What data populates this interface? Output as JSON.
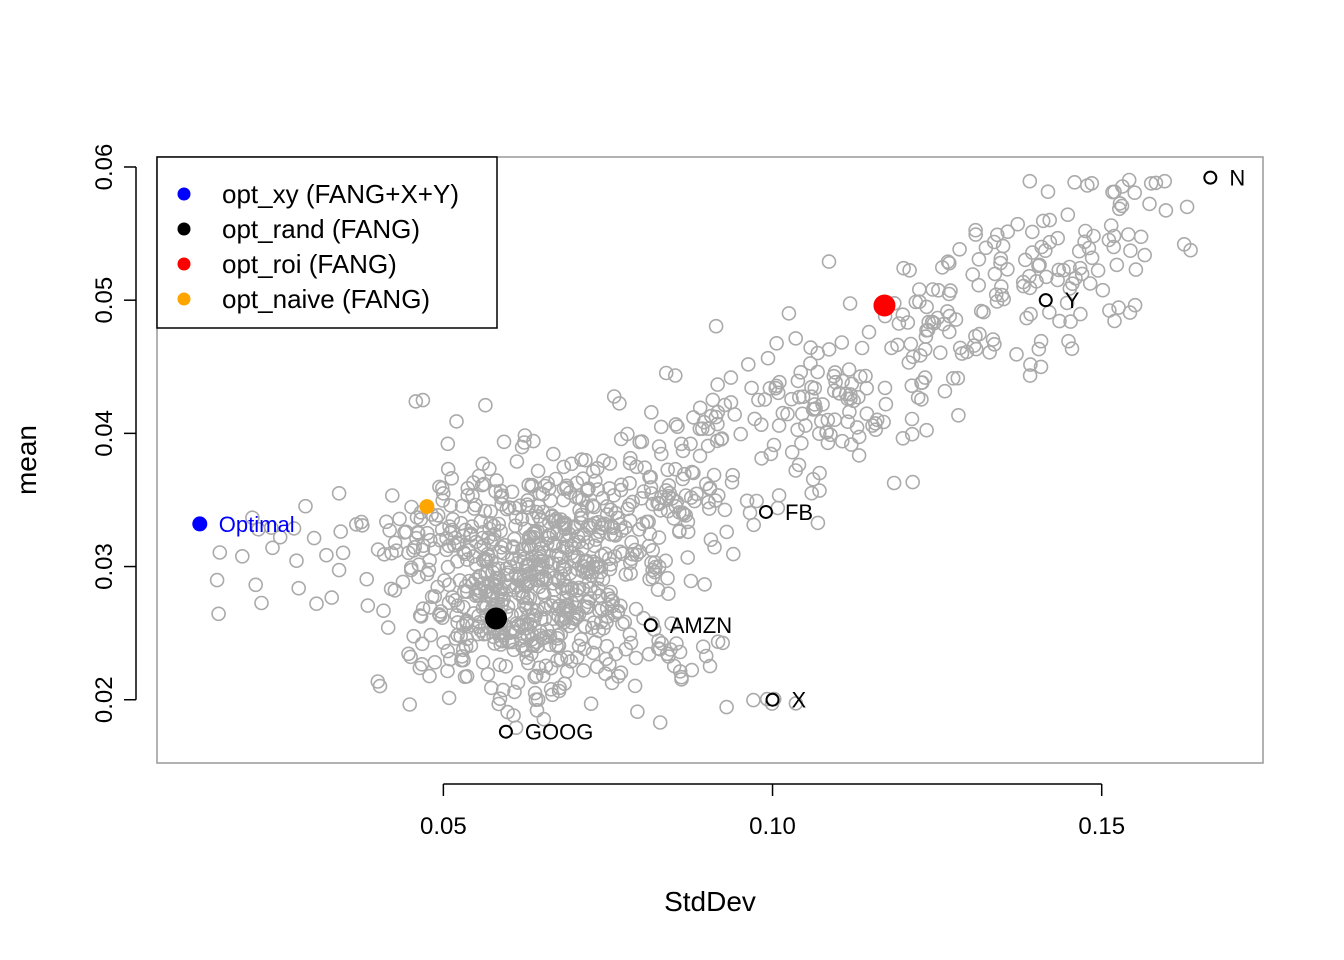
{
  "chart_data": {
    "type": "scatter",
    "xlabel": "StdDev",
    "ylabel": "mean",
    "xlim": [
      0.0065,
      0.1745
    ],
    "ylim": [
      0.01525,
      0.06075
    ],
    "xticks": [
      0.05,
      0.1,
      0.15
    ],
    "xtick_labels": [
      "0.05",
      "0.10",
      "0.15"
    ],
    "yticks": [
      0.02,
      0.03,
      0.04,
      0.05,
      0.06
    ],
    "ytick_labels": [
      "0.02",
      "0.03",
      "0.04",
      "0.05",
      "0.06"
    ],
    "grid": false,
    "legend_position": "top-left",
    "cloud": {
      "description_color": "#aaaaaa",
      "marker": "open-circle",
      "count": 1200,
      "seed": 12345
    },
    "assets": [
      {
        "label": "N",
        "x": 0.1665,
        "y": 0.0592
      },
      {
        "label": "Y",
        "x": 0.1415,
        "y": 0.05
      },
      {
        "label": "FB",
        "x": 0.099,
        "y": 0.0341
      },
      {
        "label": "AMZN",
        "x": 0.0815,
        "y": 0.0256
      },
      {
        "label": "X",
        "x": 0.1,
        "y": 0.02
      },
      {
        "label": "GOOG",
        "x": 0.0595,
        "y": 0.0176
      }
    ],
    "portfolios": [
      {
        "name": "opt_xy (FANG+X+Y)",
        "color": "#0000ff",
        "x": 0.013,
        "y": 0.0332,
        "size": "small"
      },
      {
        "name": "opt_rand (FANG)",
        "color": "#000000",
        "x": 0.058,
        "y": 0.0261,
        "size": "large"
      },
      {
        "name": "opt_roi (FANG)",
        "color": "#ff0000",
        "x": 0.117,
        "y": 0.0496,
        "size": "large"
      },
      {
        "name": "opt_naive (FANG)",
        "color": "#ffa500",
        "x": 0.0475,
        "y": 0.0345,
        "size": "small"
      }
    ],
    "annotations": [
      {
        "text": "Optimal",
        "x": 0.013,
        "y": 0.0332,
        "color": "#0000ff"
      }
    ]
  }
}
